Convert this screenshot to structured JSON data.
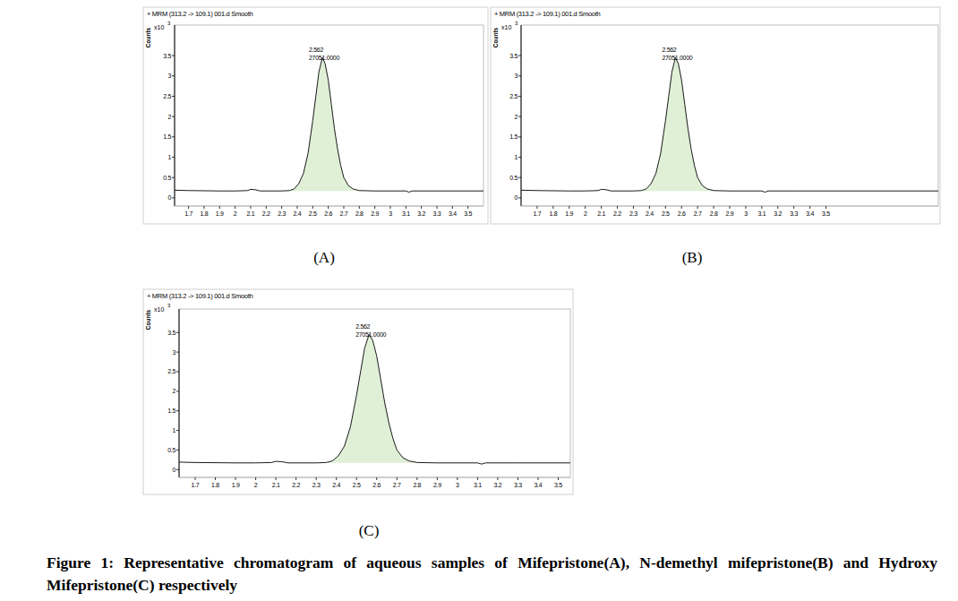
{
  "chart_data": [
    {
      "type": "line",
      "title": "+ MRM (313.2 -> 109.1) 001.d Smooth",
      "panel_label": "(A)",
      "ylabel": "Counts",
      "y_exponent_label": [
        "x10",
        "3"
      ],
      "color": "#1a1a1a",
      "annotations": [
        "2.562",
        "27051.0000"
      ],
      "x": [
        1.61,
        1.7,
        1.9,
        2.0,
        2.08,
        2.1,
        2.13,
        2.16,
        2.3,
        2.35,
        2.38,
        2.41,
        2.44,
        2.47,
        2.5,
        2.52,
        2.54,
        2.562,
        2.58,
        2.6,
        2.62,
        2.64,
        2.66,
        2.68,
        2.7,
        2.73,
        2.76,
        2.8,
        2.9,
        3.0,
        3.1,
        3.12,
        3.14,
        3.3,
        3.6
      ],
      "values": [
        0.19,
        0.18,
        0.17,
        0.17,
        0.18,
        0.21,
        0.2,
        0.17,
        0.17,
        0.18,
        0.22,
        0.35,
        0.6,
        1.1,
        1.9,
        2.5,
        3.1,
        3.45,
        3.3,
        2.9,
        2.3,
        1.7,
        1.2,
        0.8,
        0.5,
        0.3,
        0.22,
        0.18,
        0.17,
        0.17,
        0.17,
        0.14,
        0.17,
        0.17,
        0.17
      ],
      "xlim": [
        1.61,
        3.6
      ],
      "ylim": [
        -0.2,
        4.25
      ],
      "xticks": [
        1.7,
        1.8,
        1.9,
        2,
        2.1,
        2.2,
        2.3,
        2.4,
        2.5,
        2.6,
        2.7,
        2.8,
        2.9,
        3,
        3.1,
        3.2,
        3.3,
        3.4,
        3.5
      ],
      "yticks": [
        0,
        0.5,
        1,
        1.5,
        2,
        2.5,
        3,
        3.5
      ],
      "grid": false
    },
    {
      "type": "line",
      "title": "+ MRM (313.2 -> 109.1) 001.d Smooth",
      "panel_label": "(B)",
      "ylabel": "Counts",
      "y_exponent_label": [
        "x10",
        "3"
      ],
      "color": "#1a1a1a",
      "annotations": [
        "2.562",
        "27051.0000"
      ],
      "x": [
        1.6,
        1.7,
        1.9,
        2.0,
        2.08,
        2.1,
        2.13,
        2.16,
        2.3,
        2.35,
        2.38,
        2.41,
        2.44,
        2.47,
        2.5,
        2.52,
        2.54,
        2.562,
        2.58,
        2.6,
        2.62,
        2.64,
        2.66,
        2.68,
        2.7,
        2.73,
        2.76,
        2.8,
        2.9,
        3.0,
        3.1,
        3.12,
        3.14,
        3.3,
        4.2
      ],
      "values": [
        0.19,
        0.18,
        0.17,
        0.17,
        0.18,
        0.21,
        0.2,
        0.17,
        0.17,
        0.18,
        0.22,
        0.35,
        0.6,
        1.1,
        1.9,
        2.5,
        3.1,
        3.45,
        3.3,
        2.9,
        2.3,
        1.7,
        1.2,
        0.8,
        0.5,
        0.3,
        0.22,
        0.18,
        0.17,
        0.17,
        0.17,
        0.14,
        0.17,
        0.17,
        0.17
      ],
      "xlim": [
        1.6,
        4.2
      ],
      "ylim": [
        -0.2,
        4.25
      ],
      "xticks": [
        1.7,
        1.8,
        1.9,
        2,
        2.1,
        2.2,
        2.3,
        2.4,
        2.5,
        2.6,
        2.7,
        2.8,
        2.9,
        3,
        3.1,
        3.2,
        3.3,
        3.4,
        3.5
      ],
      "yticks": [
        0,
        0.5,
        1,
        1.5,
        2,
        2.5,
        3,
        3.5
      ],
      "grid": false
    },
    {
      "type": "line",
      "title": "+ MRM (313.2 -> 109.1) 001.d Smooth",
      "panel_label": "(C)",
      "ylabel": "Counts",
      "y_exponent_label": [
        "x10",
        "3"
      ],
      "color": "#1a1a1a",
      "annotations": [
        "2.562",
        "27051.0000"
      ],
      "x": [
        1.62,
        1.7,
        1.9,
        2.0,
        2.08,
        2.1,
        2.13,
        2.16,
        2.3,
        2.35,
        2.38,
        2.41,
        2.44,
        2.47,
        2.5,
        2.52,
        2.54,
        2.562,
        2.58,
        2.6,
        2.62,
        2.64,
        2.66,
        2.68,
        2.7,
        2.73,
        2.76,
        2.8,
        2.9,
        3.0,
        3.1,
        3.12,
        3.14,
        3.3,
        3.56
      ],
      "values": [
        0.19,
        0.18,
        0.17,
        0.17,
        0.18,
        0.21,
        0.2,
        0.17,
        0.17,
        0.18,
        0.22,
        0.35,
        0.6,
        1.1,
        1.9,
        2.5,
        3.1,
        3.45,
        3.3,
        2.9,
        2.3,
        1.7,
        1.2,
        0.8,
        0.5,
        0.3,
        0.22,
        0.18,
        0.17,
        0.17,
        0.17,
        0.14,
        0.17,
        0.17,
        0.17
      ],
      "xlim": [
        1.62,
        3.56
      ],
      "ylim": [
        -0.2,
        4.1
      ],
      "xticks": [
        1.7,
        1.8,
        1.9,
        2,
        2.1,
        2.2,
        2.3,
        2.4,
        2.5,
        2.6,
        2.7,
        2.8,
        2.9,
        3,
        3.1,
        3.2,
        3.3,
        3.4,
        3.5
      ],
      "yticks": [
        0,
        0.5,
        1,
        1.5,
        2,
        2.5,
        3,
        3.5
      ],
      "grid": false
    }
  ],
  "caption": "Figure 1: Representative chromatogram of aqueous samples of Mifepristone(A), N-demethyl mifepristone(B) and Hydroxy Mifepristone(C) respectively"
}
